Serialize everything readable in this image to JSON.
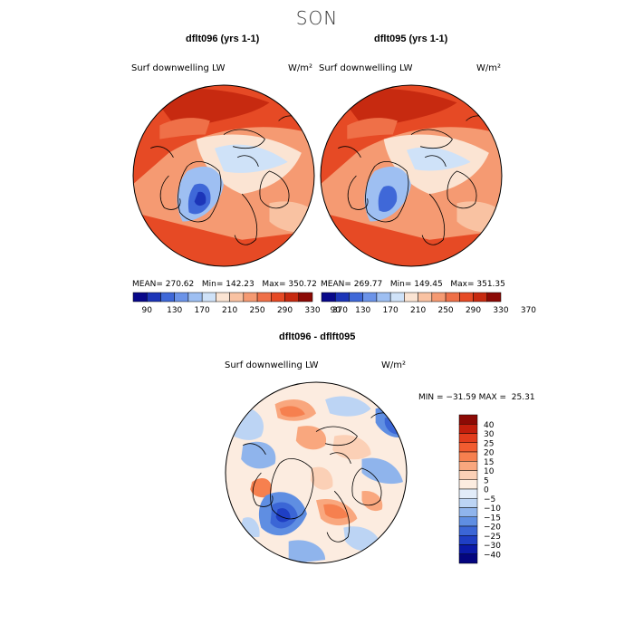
{
  "figure": {
    "season": "SON",
    "panels": [
      {
        "title": "dflt096 (yrs 1-1)",
        "variable": "Surf downwelling LW",
        "units": "W/m²",
        "stats": {
          "mean_label": "MEAN=",
          "mean": "270.62",
          "min_label": "Min=",
          "min": "142.23",
          "max_label": "Max=",
          "max": "350.72"
        }
      },
      {
        "title": "dflt095 (yrs 1-1)",
        "variable": "Surf downwelling LW",
        "units": "W/m²",
        "stats": {
          "mean_label": "MEAN=",
          "mean": "269.77",
          "min_label": "Min=",
          "min": "149.45",
          "max_label": "Max=",
          "max": "351.35"
        }
      }
    ],
    "diff": {
      "title": "dflt096 - dflft095",
      "variable": "Surf downwelling LW",
      "units": "W/m²",
      "stats": "MIN = −31.59 MAX =  25.31"
    }
  },
  "chart_data": [
    {
      "type": "heatmap",
      "title": "dflt096 (yrs 1-1)",
      "projection": "polar stereographic (north pole)",
      "variable": "Surf downwelling LW",
      "units": "W/m²",
      "mean": 270.62,
      "min": 142.23,
      "max": 350.72,
      "colorbar_ticks": [
        90,
        130,
        170,
        210,
        250,
        290,
        330,
        370
      ],
      "colors": [
        "#08088a",
        "#1c35b8",
        "#3f68d8",
        "#6b93e8",
        "#9ebff2",
        "#cfe2f8",
        "#fbe4d3",
        "#f9c2a2",
        "#f59a72",
        "#ef7048",
        "#e64a25",
        "#c72a10",
        "#8c0a05"
      ]
    },
    {
      "type": "heatmap",
      "title": "dflt095 (yrs 1-1)",
      "projection": "polar stereographic (north pole)",
      "variable": "Surf downwelling LW",
      "units": "W/m²",
      "mean": 269.77,
      "min": 149.45,
      "max": 351.35,
      "colorbar_ticks": [
        90,
        130,
        170,
        210,
        250,
        290,
        330,
        370
      ],
      "colors": [
        "#08088a",
        "#1c35b8",
        "#3f68d8",
        "#6b93e8",
        "#9ebff2",
        "#cfe2f8",
        "#fbe4d3",
        "#f9c2a2",
        "#f59a72",
        "#ef7048",
        "#e64a25",
        "#c72a10",
        "#8c0a05"
      ]
    },
    {
      "type": "heatmap",
      "title": "dflt096 - dflft095",
      "projection": "polar stereographic (north pole)",
      "variable": "Surf downwelling LW",
      "units": "W/m²",
      "min": -31.59,
      "max": 25.31,
      "colorbar_ticks": [
        "40",
        "30",
        "25",
        "20",
        "15",
        "10",
        "5",
        "0",
        "−5",
        "−10",
        "−15",
        "−20",
        "−25",
        "−30",
        "−40"
      ],
      "colors": [
        "#8c0a05",
        "#c21e0c",
        "#e23c1c",
        "#f25c30",
        "#f6804f",
        "#f9a77e",
        "#fbd0b6",
        "#fcece0",
        "#e2ecf9",
        "#bcd4f4",
        "#8fb4ec",
        "#5f8ee2",
        "#3b66d6",
        "#1f3fc4",
        "#0b1aa8",
        "#04057f"
      ]
    }
  ]
}
